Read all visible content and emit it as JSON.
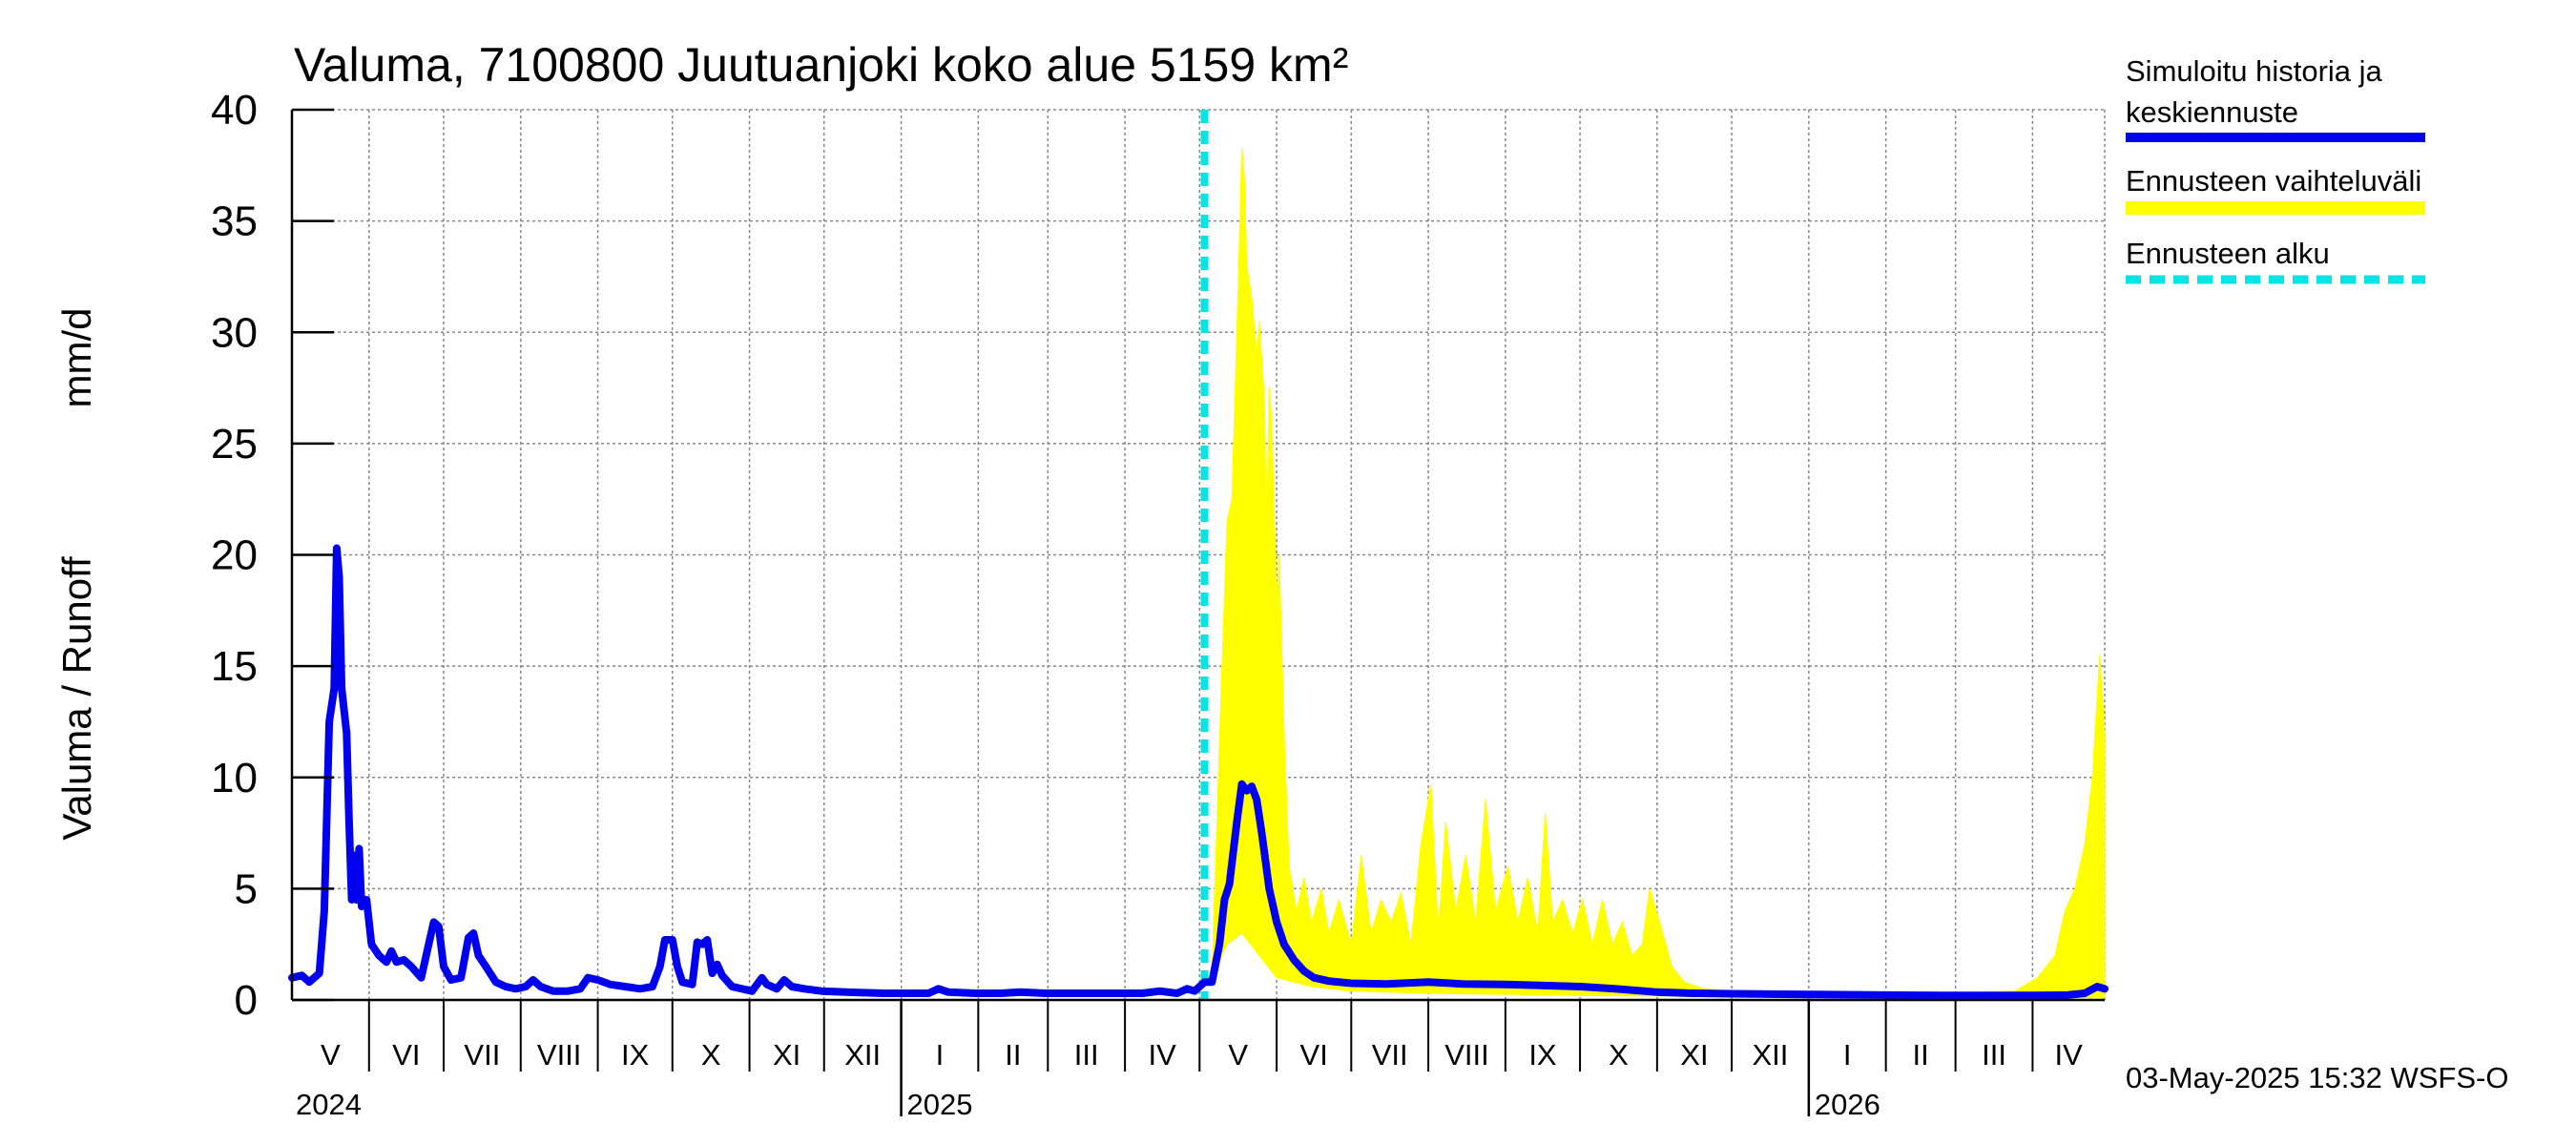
{
  "chart_data": {
    "type": "line",
    "title": "Valuma, 7100800 Juutuanjoki koko alue 5159 km²",
    "ylabel_left": "Valuma / Runoff",
    "ylabel_right": "mm/d",
    "ylim": [
      0,
      40
    ],
    "yticks": [
      "0",
      "5",
      "10",
      "15",
      "20",
      "25",
      "30",
      "35",
      "40"
    ],
    "grid": true,
    "legend_position": "right",
    "months": [
      "V",
      "VI",
      "VII",
      "VIII",
      "IX",
      "X",
      "XI",
      "XII",
      "I",
      "II",
      "III",
      "IV",
      "V",
      "VI",
      "VII",
      "VIII",
      "IX",
      "X",
      "XI",
      "XII",
      "I",
      "II",
      "III",
      "IV"
    ],
    "years": [
      "2024",
      "2025",
      "2026"
    ],
    "x_start": "2024-05-01",
    "x_end": "2026-04-30",
    "forecast_start": "2025-05-03",
    "series": [
      {
        "name": "Simuloitu historia ja keskiennuste",
        "color": "#0000ee",
        "points": [
          [
            "2024-05-01",
            1.0
          ],
          [
            "2024-05-05",
            1.1
          ],
          [
            "2024-05-08",
            0.8
          ],
          [
            "2024-05-12",
            1.2
          ],
          [
            "2024-05-14",
            4.0
          ],
          [
            "2024-05-16",
            12.5
          ],
          [
            "2024-05-18",
            14.0
          ],
          [
            "2024-05-19",
            20.3
          ],
          [
            "2024-05-20",
            19.0
          ],
          [
            "2024-05-21",
            14.0
          ],
          [
            "2024-05-23",
            12.0
          ],
          [
            "2024-05-24",
            8.0
          ],
          [
            "2024-05-25",
            4.5
          ],
          [
            "2024-05-26",
            6.5
          ],
          [
            "2024-05-27",
            4.5
          ],
          [
            "2024-05-28",
            6.8
          ],
          [
            "2024-05-29",
            4.2
          ],
          [
            "2024-05-31",
            4.5
          ],
          [
            "2024-06-02",
            2.5
          ],
          [
            "2024-06-05",
            2.0
          ],
          [
            "2024-06-08",
            1.7
          ],
          [
            "2024-06-10",
            2.2
          ],
          [
            "2024-06-12",
            1.7
          ],
          [
            "2024-06-15",
            1.8
          ],
          [
            "2024-06-18",
            1.5
          ],
          [
            "2024-06-22",
            1.0
          ],
          [
            "2024-06-25",
            2.5
          ],
          [
            "2024-06-27",
            3.5
          ],
          [
            "2024-06-29",
            3.3
          ],
          [
            "2024-07-01",
            1.5
          ],
          [
            "2024-07-04",
            0.9
          ],
          [
            "2024-07-08",
            1.0
          ],
          [
            "2024-07-11",
            2.8
          ],
          [
            "2024-07-13",
            3.0
          ],
          [
            "2024-07-15",
            2.0
          ],
          [
            "2024-07-18",
            1.5
          ],
          [
            "2024-07-22",
            0.8
          ],
          [
            "2024-07-26",
            0.6
          ],
          [
            "2024-07-30",
            0.5
          ],
          [
            "2024-08-03",
            0.6
          ],
          [
            "2024-08-06",
            0.9
          ],
          [
            "2024-08-09",
            0.6
          ],
          [
            "2024-08-14",
            0.4
          ],
          [
            "2024-08-20",
            0.4
          ],
          [
            "2024-08-25",
            0.5
          ],
          [
            "2024-08-28",
            1.0
          ],
          [
            "2024-09-01",
            0.9
          ],
          [
            "2024-09-06",
            0.7
          ],
          [
            "2024-09-12",
            0.6
          ],
          [
            "2024-09-18",
            0.5
          ],
          [
            "2024-09-23",
            0.6
          ],
          [
            "2024-09-26",
            1.5
          ],
          [
            "2024-09-28",
            2.7
          ],
          [
            "2024-10-01",
            2.7
          ],
          [
            "2024-10-03",
            1.5
          ],
          [
            "2024-10-05",
            0.8
          ],
          [
            "2024-10-09",
            0.7
          ],
          [
            "2024-10-11",
            2.6
          ],
          [
            "2024-10-13",
            2.5
          ],
          [
            "2024-10-15",
            2.7
          ],
          [
            "2024-10-17",
            1.2
          ],
          [
            "2024-10-19",
            1.6
          ],
          [
            "2024-10-21",
            1.1
          ],
          [
            "2024-10-25",
            0.6
          ],
          [
            "2024-10-29",
            0.5
          ],
          [
            "2024-11-02",
            0.4
          ],
          [
            "2024-11-06",
            1.0
          ],
          [
            "2024-11-08",
            0.7
          ],
          [
            "2024-11-12",
            0.5
          ],
          [
            "2024-11-15",
            0.9
          ],
          [
            "2024-11-18",
            0.6
          ],
          [
            "2024-11-23",
            0.5
          ],
          [
            "2024-11-30",
            0.4
          ],
          [
            "2024-12-10",
            0.35
          ],
          [
            "2024-12-25",
            0.3
          ],
          [
            "2025-01-05",
            0.3
          ],
          [
            "2025-01-12",
            0.3
          ],
          [
            "2025-01-16",
            0.5
          ],
          [
            "2025-01-20",
            0.35
          ],
          [
            "2025-01-31",
            0.3
          ],
          [
            "2025-02-10",
            0.3
          ],
          [
            "2025-02-18",
            0.35
          ],
          [
            "2025-02-28",
            0.3
          ],
          [
            "2025-03-15",
            0.3
          ],
          [
            "2025-03-31",
            0.3
          ],
          [
            "2025-04-08",
            0.3
          ],
          [
            "2025-04-15",
            0.4
          ],
          [
            "2025-04-22",
            0.3
          ],
          [
            "2025-04-26",
            0.5
          ],
          [
            "2025-04-29",
            0.4
          ],
          [
            "2025-05-03",
            0.8
          ],
          [
            "2025-05-06",
            0.8
          ],
          [
            "2025-05-09",
            2.5
          ],
          [
            "2025-05-11",
            4.5
          ],
          [
            "2025-05-13",
            5.2
          ],
          [
            "2025-05-16",
            8.0
          ],
          [
            "2025-05-18",
            9.7
          ],
          [
            "2025-05-20",
            9.4
          ],
          [
            "2025-05-22",
            9.6
          ],
          [
            "2025-05-24",
            9.0
          ],
          [
            "2025-05-26",
            7.5
          ],
          [
            "2025-05-29",
            5.0
          ],
          [
            "2025-06-01",
            3.5
          ],
          [
            "2025-06-04",
            2.5
          ],
          [
            "2025-06-08",
            1.8
          ],
          [
            "2025-06-12",
            1.3
          ],
          [
            "2025-06-16",
            1.0
          ],
          [
            "2025-06-22",
            0.85
          ],
          [
            "2025-07-01",
            0.75
          ],
          [
            "2025-07-15",
            0.72
          ],
          [
            "2025-08-01",
            0.8
          ],
          [
            "2025-08-15",
            0.72
          ],
          [
            "2025-09-01",
            0.7
          ],
          [
            "2025-09-15",
            0.65
          ],
          [
            "2025-10-01",
            0.6
          ],
          [
            "2025-10-15",
            0.5
          ],
          [
            "2025-11-01",
            0.35
          ],
          [
            "2025-11-15",
            0.3
          ],
          [
            "2025-12-01",
            0.28
          ],
          [
            "2026-01-01",
            0.25
          ],
          [
            "2026-02-01",
            0.22
          ],
          [
            "2026-03-01",
            0.2
          ],
          [
            "2026-04-01",
            0.2
          ],
          [
            "2026-04-15",
            0.22
          ],
          [
            "2026-04-22",
            0.3
          ],
          [
            "2026-04-27",
            0.6
          ],
          [
            "2026-04-30",
            0.5
          ]
        ]
      },
      {
        "name": "Ennusteen vaihteluväli",
        "color": "#ffff00",
        "upper": [
          [
            "2025-05-03",
            0.8
          ],
          [
            "2025-05-06",
            1.2
          ],
          [
            "2025-05-08",
            8.0
          ],
          [
            "2025-05-10",
            15.0
          ],
          [
            "2025-05-12",
            21.5
          ],
          [
            "2025-05-14",
            22.5
          ],
          [
            "2025-05-16",
            30.0
          ],
          [
            "2025-05-18",
            38.3
          ],
          [
            "2025-05-19",
            37.0
          ],
          [
            "2025-05-20",
            33.0
          ],
          [
            "2025-05-22",
            31.5
          ],
          [
            "2025-05-24",
            29.0
          ],
          [
            "2025-05-25",
            30.5
          ],
          [
            "2025-05-27",
            27.0
          ],
          [
            "2025-05-28",
            21.0
          ],
          [
            "2025-05-29",
            27.5
          ],
          [
            "2025-05-30",
            26.0
          ],
          [
            "2025-06-01",
            18.0
          ],
          [
            "2025-06-02",
            20.0
          ],
          [
            "2025-06-04",
            12.0
          ],
          [
            "2025-06-06",
            6.0
          ],
          [
            "2025-06-09",
            4.0
          ],
          [
            "2025-06-12",
            5.5
          ],
          [
            "2025-06-15",
            3.5
          ],
          [
            "2025-06-19",
            5.0
          ],
          [
            "2025-06-22",
            3.0
          ],
          [
            "2025-06-26",
            4.5
          ],
          [
            "2025-07-01",
            2.5
          ],
          [
            "2025-07-05",
            6.5
          ],
          [
            "2025-07-09",
            3.0
          ],
          [
            "2025-07-13",
            4.5
          ],
          [
            "2025-07-17",
            3.5
          ],
          [
            "2025-07-21",
            4.8
          ],
          [
            "2025-07-25",
            2.5
          ],
          [
            "2025-07-29",
            7.0
          ],
          [
            "2025-08-02",
            9.7
          ],
          [
            "2025-08-05",
            3.0
          ],
          [
            "2025-08-08",
            8.0
          ],
          [
            "2025-08-12",
            4.0
          ],
          [
            "2025-08-16",
            6.5
          ],
          [
            "2025-08-20",
            3.5
          ],
          [
            "2025-08-24",
            9.0
          ],
          [
            "2025-08-28",
            4.0
          ],
          [
            "2025-09-02",
            6.0
          ],
          [
            "2025-09-06",
            3.5
          ],
          [
            "2025-09-10",
            5.5
          ],
          [
            "2025-09-14",
            3.0
          ],
          [
            "2025-09-17",
            8.4
          ],
          [
            "2025-09-20",
            3.5
          ],
          [
            "2025-09-24",
            4.5
          ],
          [
            "2025-09-28",
            3.0
          ],
          [
            "2025-10-02",
            4.5
          ],
          [
            "2025-10-06",
            2.5
          ],
          [
            "2025-10-10",
            4.5
          ],
          [
            "2025-10-14",
            2.5
          ],
          [
            "2025-10-18",
            3.5
          ],
          [
            "2025-10-22",
            2.0
          ],
          [
            "2025-10-26",
            2.5
          ],
          [
            "2025-10-29",
            5.0
          ],
          [
            "2025-11-02",
            3.5
          ],
          [
            "2025-11-07",
            1.5
          ],
          [
            "2025-11-12",
            0.8
          ],
          [
            "2025-11-20",
            0.5
          ],
          [
            "2025-12-01",
            0.4
          ],
          [
            "2026-01-01",
            0.35
          ],
          [
            "2026-02-01",
            0.3
          ],
          [
            "2026-03-01",
            0.3
          ],
          [
            "2026-03-25",
            0.4
          ],
          [
            "2026-04-03",
            1.0
          ],
          [
            "2026-04-10",
            2.0
          ],
          [
            "2026-04-14",
            4.0
          ],
          [
            "2026-04-18",
            5.0
          ],
          [
            "2026-04-22",
            7.0
          ],
          [
            "2026-04-25",
            10.0
          ],
          [
            "2026-04-28",
            15.5
          ],
          [
            "2026-04-30",
            12.0
          ]
        ],
        "lower": [
          [
            "2025-05-03",
            0.8
          ],
          [
            "2025-05-08",
            1.5
          ],
          [
            "2025-05-12",
            2.5
          ],
          [
            "2025-05-18",
            3.0
          ],
          [
            "2025-05-25",
            2.0
          ],
          [
            "2025-06-01",
            1.0
          ],
          [
            "2025-06-15",
            0.6
          ],
          [
            "2025-07-01",
            0.4
          ],
          [
            "2025-08-01",
            0.3
          ],
          [
            "2025-10-01",
            0.2
          ],
          [
            "2025-12-01",
            0.15
          ],
          [
            "2026-02-01",
            0.1
          ],
          [
            "2026-04-30",
            0.1
          ]
        ]
      },
      {
        "name": "Ennusteen alku",
        "color": "#00e5e5"
      }
    ]
  },
  "footer": {
    "timestamp": "03-May-2025 15:32 WSFS-O"
  }
}
